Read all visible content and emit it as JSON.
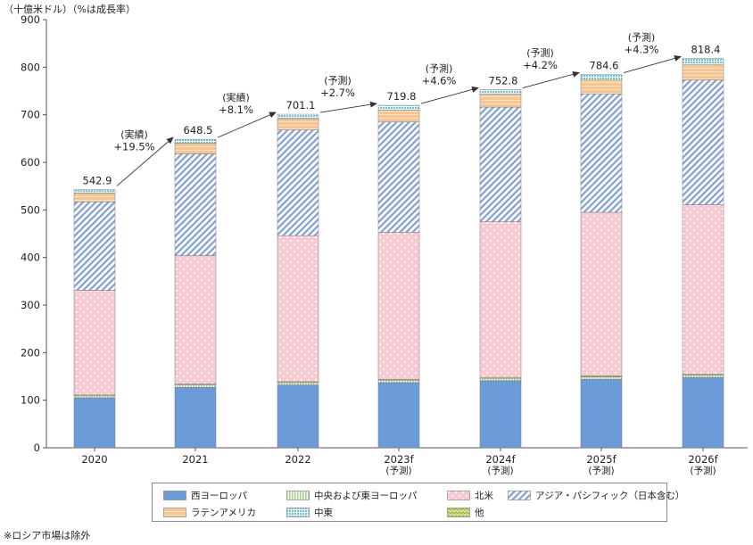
{
  "unit_label": "（十億米ドル）（%は成長率）",
  "footnote": "※ロシア市場は除外",
  "colors": {
    "western_europe": "#6b9bd8",
    "latin_america": "#f6c592",
    "cee": "#a9d18e",
    "middle_east": "#62c8d8",
    "north_america": "#f9c9d2",
    "apac": "#b7c9ec",
    "other": "#d6e08a"
  },
  "chart_data": {
    "type": "bar",
    "stacked": true,
    "categories": [
      "2020",
      "2021",
      "2022",
      "2023f\n(予測)",
      "2024f\n(予測)",
      "2025f\n(予測)",
      "2026f\n(予測)"
    ],
    "ylim": [
      0,
      900
    ],
    "yticks": [
      0,
      100,
      200,
      300,
      400,
      500,
      600,
      700,
      800,
      900
    ],
    "grid": false,
    "legend_position": "bottom",
    "series": [
      {
        "key": "western_europe",
        "name": "西ヨーロッパ",
        "pattern": "solid",
        "values": [
          105,
          127,
          132,
          137,
          141,
          144,
          148
        ]
      },
      {
        "key": "cee",
        "name": "中央および東ヨーロッパ",
        "pattern": "vstripe",
        "values": [
          4,
          5,
          5,
          5,
          5,
          5,
          5
        ]
      },
      {
        "key": "other",
        "name": "他",
        "pattern": "zigzag",
        "values": [
          2,
          2,
          2,
          2,
          2,
          2,
          2
        ]
      },
      {
        "key": "north_america",
        "name": "北米",
        "pattern": "dots",
        "values": [
          220,
          270,
          307,
          309,
          327,
          344,
          356
        ]
      },
      {
        "key": "apac",
        "name": "アジア・パシフィック（日本含む）",
        "pattern": "diag",
        "values": [
          186,
          214,
          222,
          232,
          241,
          249,
          262
        ]
      },
      {
        "key": "latin_america",
        "name": "ラテンアメリカ",
        "pattern": "hstripe",
        "values": [
          18,
          22,
          24,
          25,
          27,
          29,
          33
        ]
      },
      {
        "key": "middle_east",
        "name": "中東",
        "pattern": "grid",
        "values": [
          7.9,
          8.5,
          9.1,
          9.8,
          9.8,
          11.6,
          12.4
        ]
      }
    ],
    "totals": [
      "542.9",
      "648.5",
      "701.1",
      "719.8",
      "752.8",
      "784.6",
      "818.4"
    ],
    "growth": [
      {
        "from": 0,
        "to": 1,
        "kind": "(実績)",
        "rate": "+19.5%"
      },
      {
        "from": 1,
        "to": 2,
        "kind": "(実績)",
        "rate": "+8.1%"
      },
      {
        "from": 2,
        "to": 3,
        "kind": "(予測)",
        "rate": "+2.7%"
      },
      {
        "from": 3,
        "to": 4,
        "kind": "(予測)",
        "rate": "+4.6%"
      },
      {
        "from": 4,
        "to": 5,
        "kind": "(予測)",
        "rate": "+4.2%"
      },
      {
        "from": 5,
        "to": 6,
        "kind": "(予測)",
        "rate": "+4.3%"
      }
    ],
    "legend": [
      {
        "key": "western_europe",
        "label": "西ヨーロッパ"
      },
      {
        "key": "cee",
        "label": "中央および東ヨーロッパ"
      },
      {
        "key": "north_america",
        "label": "北米"
      },
      {
        "key": "apac",
        "label": "アジア・パシフィック（日本含む）"
      },
      {
        "key": "latin_america",
        "label": "ラテンアメリカ"
      },
      {
        "key": "middle_east",
        "label": "中東"
      },
      {
        "key": "other",
        "label": "他"
      }
    ]
  }
}
